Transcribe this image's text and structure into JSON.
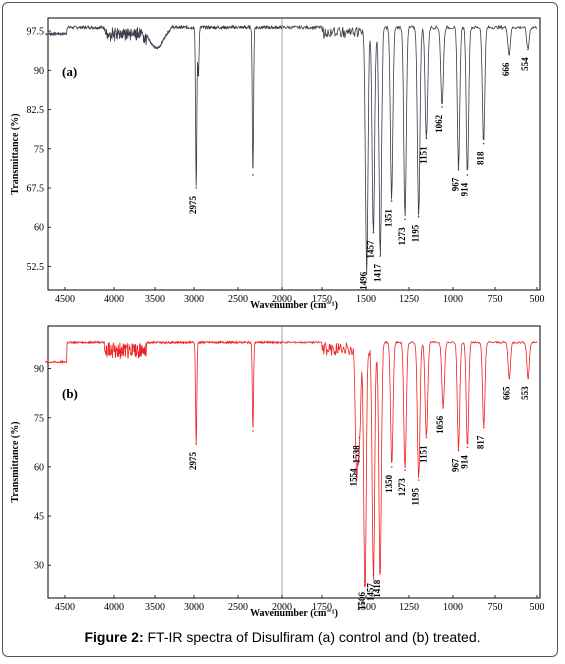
{
  "caption": {
    "label": "Figure 2:",
    "text": " FT-IR spectra of Disulfiram (a) control and (b) treated."
  },
  "chart_data": [
    {
      "type": "line",
      "panel_label": "(a)",
      "xlabel": "Wavenumber (cm⁻¹)",
      "ylabel": "Transmittance (%)",
      "xlim": [
        4700,
        500
      ],
      "ylim": [
        48,
        100
      ],
      "xticks": [
        4500,
        4000,
        3500,
        3000,
        2500,
        2000,
        1750,
        1500,
        1250,
        1000,
        750,
        500
      ],
      "yticks": [
        97.5,
        90,
        82.5,
        75,
        67.5,
        60,
        52.5
      ],
      "color": "#3a3a4a",
      "baseline": 98.2,
      "peaks": [
        {
          "x": 2975,
          "y": 67.5,
          "label": "2975"
        },
        {
          "x": 2950,
          "y": 89,
          "label": ""
        },
        {
          "x": 2330,
          "y": 70,
          "label": ""
        },
        {
          "x": 1496,
          "y": 53,
          "label": "1496"
        },
        {
          "x": 1457,
          "y": 59,
          "label": "1457"
        },
        {
          "x": 1417,
          "y": 54.5,
          "label": "1417"
        },
        {
          "x": 1351,
          "y": 65,
          "label": "1351"
        },
        {
          "x": 1273,
          "y": 61.5,
          "label": "1273"
        },
        {
          "x": 1195,
          "y": 62,
          "label": "1195"
        },
        {
          "x": 1151,
          "y": 77,
          "label": "1151"
        },
        {
          "x": 1062,
          "y": 83,
          "label": "1062"
        },
        {
          "x": 967,
          "y": 71,
          "label": "967"
        },
        {
          "x": 914,
          "y": 70,
          "label": "914"
        },
        {
          "x": 818,
          "y": 76,
          "label": "818"
        },
        {
          "x": 666,
          "y": 93,
          "label": "666"
        },
        {
          "x": 554,
          "y": 94,
          "label": "554"
        }
      ]
    },
    {
      "type": "line",
      "panel_label": "(b)",
      "xlabel": "Wavenumber (cm⁻¹)",
      "ylabel": "Transmittance (%)",
      "xlim": [
        4700,
        500
      ],
      "ylim": [
        20,
        103
      ],
      "xticks": [
        4500,
        4000,
        3500,
        3000,
        2500,
        2000,
        1750,
        1500,
        1250,
        1000,
        750,
        500
      ],
      "yticks": [
        90,
        75,
        60,
        45,
        30
      ],
      "color": "#ee2222",
      "baseline": 98,
      "peaks": [
        {
          "x": 2975,
          "y": 67,
          "label": "2975"
        },
        {
          "x": 2330,
          "y": 71,
          "label": ""
        },
        {
          "x": 1554,
          "y": 62,
          "label": "1554"
        },
        {
          "x": 1538,
          "y": 69,
          "label": "1538"
        },
        {
          "x": 1506,
          "y": 24,
          "label": "1506"
        },
        {
          "x": 1457,
          "y": 27,
          "label": "1457"
        },
        {
          "x": 1418,
          "y": 28,
          "label": "1418"
        },
        {
          "x": 1350,
          "y": 60,
          "label": "1350"
        },
        {
          "x": 1273,
          "y": 59,
          "label": "1273"
        },
        {
          "x": 1195,
          "y": 56,
          "label": "1195"
        },
        {
          "x": 1151,
          "y": 69,
          "label": "1151"
        },
        {
          "x": 1056,
          "y": 78,
          "label": "1056"
        },
        {
          "x": 967,
          "y": 65,
          "label": "967"
        },
        {
          "x": 914,
          "y": 66,
          "label": "914"
        },
        {
          "x": 817,
          "y": 72,
          "label": "817"
        },
        {
          "x": 665,
          "y": 87,
          "label": "665"
        },
        {
          "x": 553,
          "y": 87,
          "label": "553"
        }
      ]
    }
  ]
}
